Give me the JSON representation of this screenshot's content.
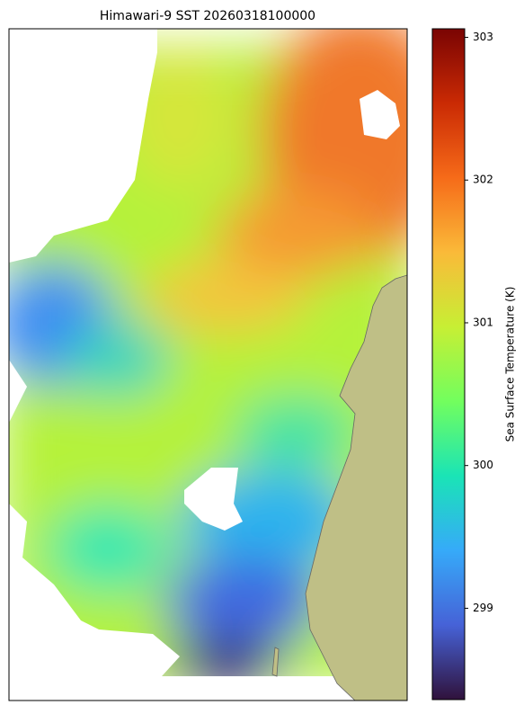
{
  "title": "Himawari-9 SST 20260318100000",
  "colorbar": {
    "label": "Sea Surface Temperature (K)",
    "lim": [
      298.36,
      303.06
    ],
    "ticks": [
      299,
      300,
      301,
      302,
      303
    ],
    "colors": [
      "#30123b",
      "#4662d7",
      "#36aaf9",
      "#1ae4b6",
      "#72fe5e",
      "#c7ef34",
      "#faba39",
      "#f66b19",
      "#ca2a04",
      "#7a0403"
    ]
  }
}
